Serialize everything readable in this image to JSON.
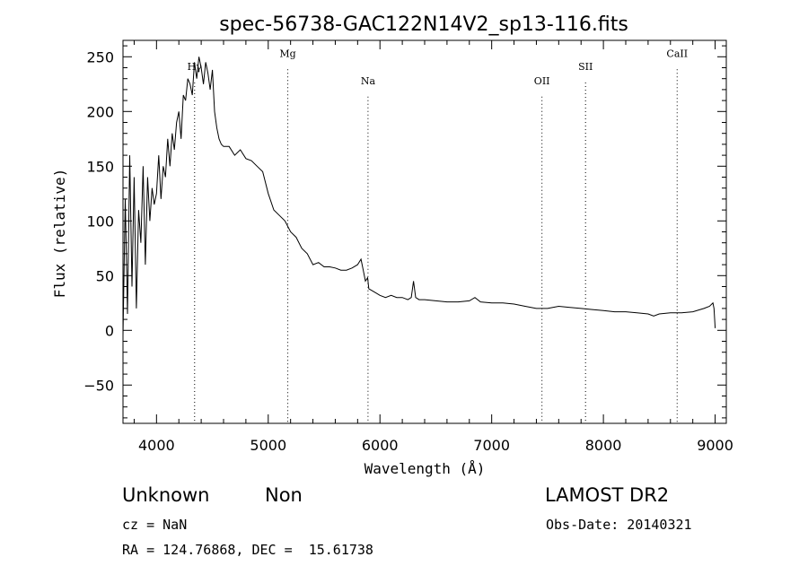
{
  "chart_data": {
    "type": "line",
    "title": "spec-56738-GAC122N14V2_sp13-116.fits",
    "xlabel": "Wavelength (Å)",
    "ylabel": "Flux (relative)",
    "xlim": [
      3700,
      9100
    ],
    "ylim": [
      -85,
      265
    ],
    "x_ticks": [
      4000,
      5000,
      6000,
      7000,
      8000,
      9000
    ],
    "x_tick_labels": [
      "4000",
      "5000",
      "6000",
      "7000",
      "8000",
      "9000"
    ],
    "y_ticks": [
      -50,
      0,
      50,
      100,
      150,
      200,
      250
    ],
    "y_tick_labels": [
      "−50",
      "0",
      "50",
      "100",
      "150",
      "200",
      "250"
    ],
    "grid": false,
    "legend": "none",
    "line_color": "#000000",
    "series": [
      {
        "x": [
          3700,
          3720,
          3740,
          3760,
          3780,
          3800,
          3820,
          3840,
          3860,
          3880,
          3900,
          3920,
          3940,
          3960,
          3980,
          4000,
          4020,
          4040,
          4060,
          4080,
          4100,
          4120,
          4140,
          4160,
          4180,
          4200,
          4220,
          4240,
          4260,
          4280,
          4300,
          4320,
          4340,
          4360,
          4380,
          4400,
          4420,
          4440,
          4460,
          4480,
          4500,
          4520,
          4540,
          4560,
          4580,
          4600,
          4650,
          4700,
          4750,
          4800,
          4850,
          4900,
          4950,
          5000,
          5050,
          5100,
          5150,
          5200,
          5250,
          5300,
          5350,
          5400,
          5450,
          5500,
          5550,
          5600,
          5650,
          5700,
          5750,
          5800,
          5830,
          5850,
          5870,
          5890,
          5900,
          5950,
          6000,
          6050,
          6100,
          6150,
          6200,
          6250,
          6280,
          6300,
          6320,
          6350,
          6400,
          6500,
          6600,
          6700,
          6800,
          6850,
          6900,
          7000,
          7100,
          7200,
          7300,
          7400,
          7500,
          7600,
          7700,
          7800,
          7900,
          8000,
          8100,
          8200,
          8300,
          8400,
          8450,
          8500,
          8600,
          8700,
          8800,
          8900,
          8950,
          8980,
          8990,
          9000
        ],
        "y": [
          -5,
          120,
          15,
          160,
          40,
          140,
          20,
          110,
          80,
          150,
          60,
          140,
          100,
          130,
          115,
          125,
          160,
          120,
          150,
          140,
          175,
          150,
          180,
          165,
          190,
          200,
          175,
          215,
          210,
          230,
          225,
          215,
          245,
          230,
          250,
          240,
          225,
          245,
          235,
          220,
          238,
          200,
          185,
          175,
          170,
          168,
          168,
          160,
          165,
          157,
          155,
          150,
          145,
          125,
          110,
          105,
          100,
          90,
          85,
          75,
          70,
          60,
          62,
          58,
          58,
          57,
          55,
          55,
          57,
          60,
          65,
          55,
          45,
          48,
          38,
          35,
          32,
          30,
          32,
          30,
          30,
          28,
          30,
          45,
          30,
          28,
          28,
          27,
          26,
          26,
          27,
          30,
          26,
          25,
          25,
          24,
          22,
          20,
          20,
          22,
          21,
          20,
          19,
          18,
          17,
          17,
          16,
          15,
          13,
          15,
          16,
          16,
          17,
          20,
          22,
          25,
          20,
          2
        ]
      }
    ],
    "annotations": [
      {
        "label": "Hγ",
        "x": 4341,
        "y": 238
      },
      {
        "label": "Mg",
        "x": 5175,
        "y": 250
      },
      {
        "label": "Na",
        "x": 5893,
        "y": 225
      },
      {
        "label": "OII",
        "x": 7450,
        "y": 225
      },
      {
        "label": "SII",
        "x": 7840,
        "y": 238
      },
      {
        "label": "CaII",
        "x": 8660,
        "y": 250
      }
    ]
  },
  "info": {
    "object_class": "Unknown",
    "object_subclass": "Non",
    "survey": "LAMOST DR2",
    "redshift_line": "cz = NaN",
    "obs_date_line": "Obs-Date: 20140321",
    "coords_line": "RA = 124.76868, DEC =  15.61738"
  }
}
